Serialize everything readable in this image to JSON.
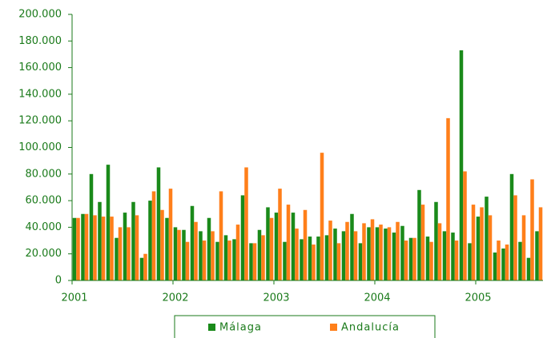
{
  "chart_data": {
    "type": "bar",
    "categories": [
      "2001",
      null,
      null,
      null,
      null,
      null,
      null,
      null,
      null,
      null,
      null,
      null,
      "2002",
      null,
      null,
      null,
      null,
      null,
      null,
      null,
      null,
      null,
      null,
      null,
      "2003",
      null,
      null,
      null,
      null,
      null,
      null,
      null,
      null,
      null,
      null,
      null,
      "2004",
      null,
      null,
      null,
      null,
      null,
      null,
      null,
      null,
      null,
      null,
      null,
      "2005",
      null,
      null,
      null,
      null,
      null,
      null,
      null
    ],
    "series": [
      {
        "name": "Málaga",
        "color": "#1a8a1a",
        "values": [
          47000,
          50000,
          80000,
          59000,
          87000,
          32000,
          51000,
          59000,
          17000,
          60000,
          85000,
          47000,
          40000,
          38000,
          56000,
          37000,
          47000,
          29000,
          34000,
          31000,
          64000,
          28000,
          38000,
          55000,
          51000,
          29000,
          51000,
          31000,
          33000,
          33000,
          34000,
          39000,
          37000,
          50000,
          28000,
          40000,
          40000,
          39000,
          36000,
          41000,
          32000,
          68000,
          33000,
          59000,
          37000,
          36000,
          173000,
          28000,
          48000,
          63000,
          21000,
          24000,
          80000,
          29000,
          17000,
          37000
        ]
      },
      {
        "name": "Andalucía",
        "color": "#ff7f1a",
        "values": [
          47000,
          50000,
          49000,
          48000,
          48000,
          40000,
          40000,
          49000,
          20000,
          67000,
          53000,
          69000,
          38000,
          29000,
          44000,
          30000,
          37000,
          67000,
          30000,
          42000,
          85000,
          28000,
          34000,
          47000,
          69000,
          57000,
          39000,
          53000,
          27000,
          96000,
          45000,
          28000,
          44000,
          37000,
          43000,
          46000,
          42000,
          40000,
          44000,
          30000,
          32000,
          57000,
          29000,
          43000,
          122000,
          30000,
          82000,
          57000,
          55000,
          49000,
          30000,
          27000,
          64000,
          49000,
          76000,
          55000
        ]
      }
    ],
    "ylim": [
      0,
      200000
    ],
    "yticks": [
      {
        "value": 0,
        "label": "0"
      },
      {
        "value": 20000,
        "label": "20.000"
      },
      {
        "value": 40000,
        "label": "40.000"
      },
      {
        "value": 60000,
        "label": "60.000"
      },
      {
        "value": 80000,
        "label": "80.000"
      },
      {
        "value": 100000,
        "label": "100.000"
      },
      {
        "value": 120000,
        "label": "120.000"
      },
      {
        "value": 140000,
        "label": "140.000"
      },
      {
        "value": 160000,
        "label": "160.000"
      },
      {
        "value": 180000,
        "label": "180.000"
      },
      {
        "value": 200000,
        "label": "200.000"
      }
    ],
    "grid": false
  }
}
